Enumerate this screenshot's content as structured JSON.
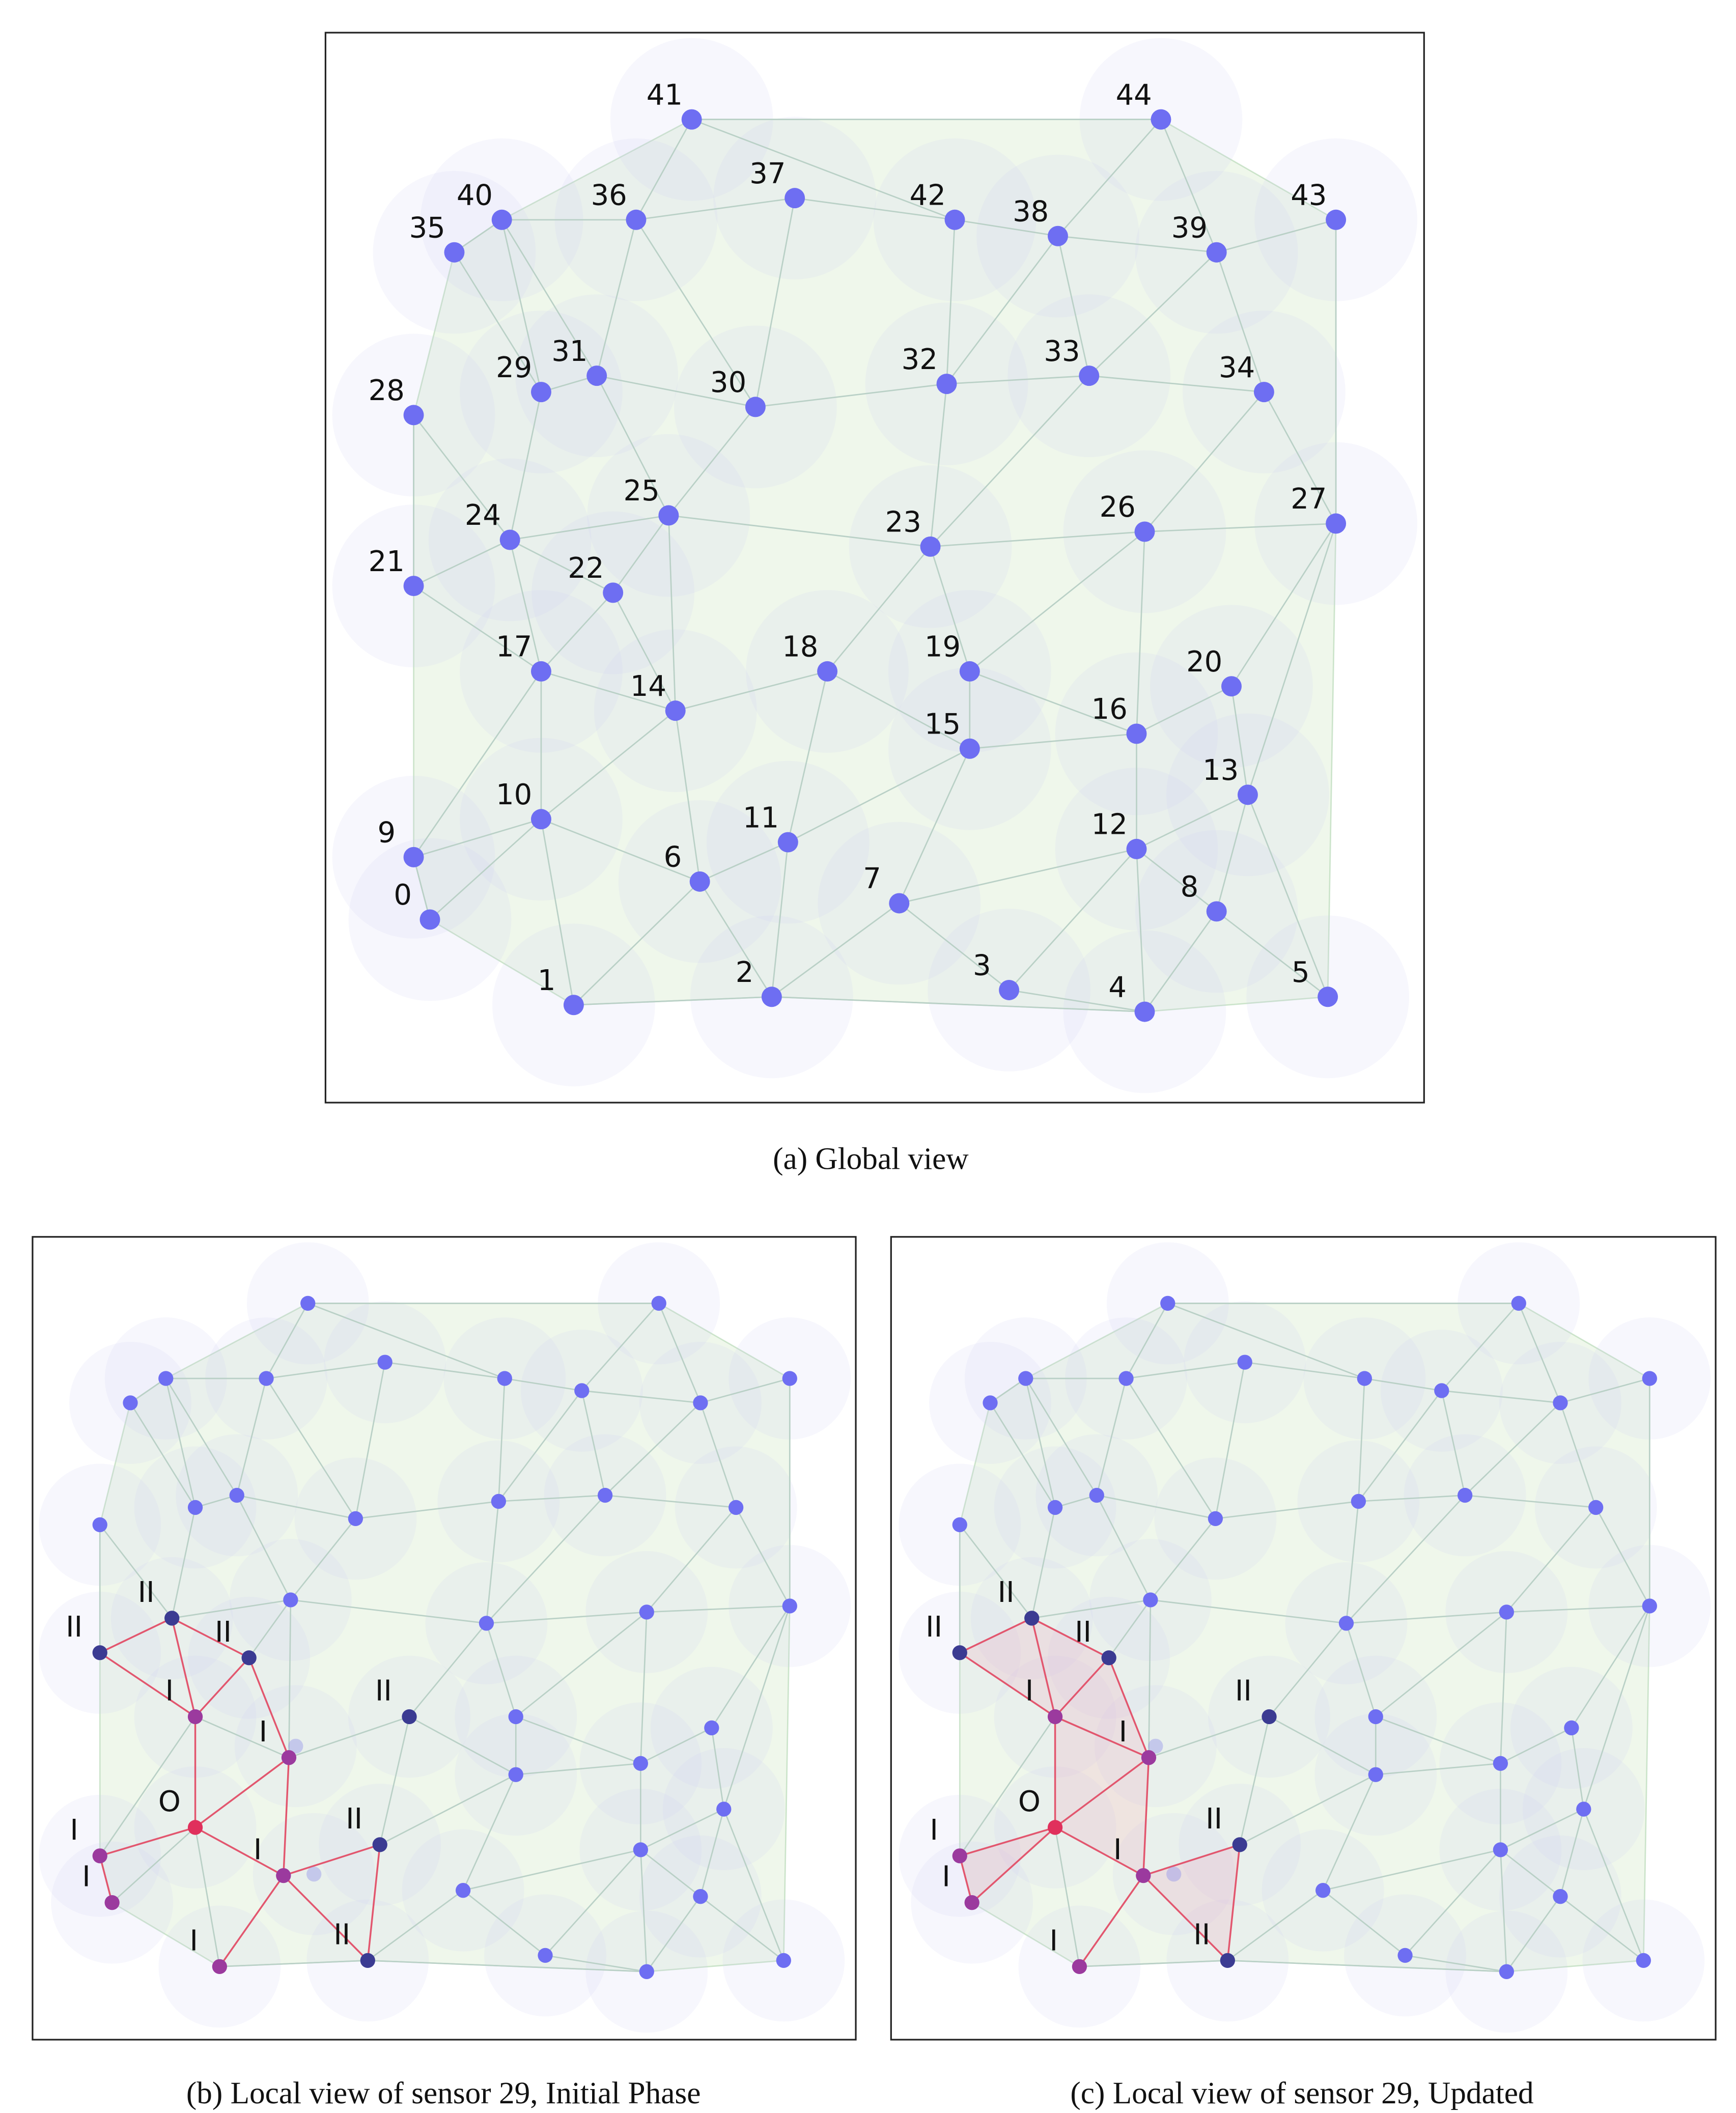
{
  "global_view": {
    "caption": "(a)  Global view",
    "node_labels": [
      "0",
      "1",
      "2",
      "3",
      "4",
      "5",
      "6",
      "7",
      "8",
      "9",
      "10",
      "11",
      "12",
      "13",
      "14",
      "15",
      "16",
      "17",
      "18",
      "19",
      "20",
      "21",
      "22",
      "23",
      "24",
      "25",
      "26",
      "27",
      "28",
      "29",
      "30",
      "31",
      "32",
      "33",
      "34",
      "35",
      "36",
      "37",
      "38",
      "39",
      "40",
      "41",
      "42",
      "43",
      "44"
    ]
  },
  "initial_view": {
    "caption": "(b)  Local view of sensor 29, Initial Phase",
    "labels": [
      "II",
      "II",
      "II",
      "I",
      "I",
      "II",
      "O",
      "I",
      "I",
      "I",
      "II",
      "I",
      "II"
    ]
  },
  "updated_view": {
    "caption": "(c)  Local view of sensor 29, Updated",
    "labels": [
      "II",
      "II",
      "II",
      "I",
      "I",
      "II",
      "O",
      "I",
      "I",
      "I",
      "II",
      "I",
      "II"
    ]
  }
}
